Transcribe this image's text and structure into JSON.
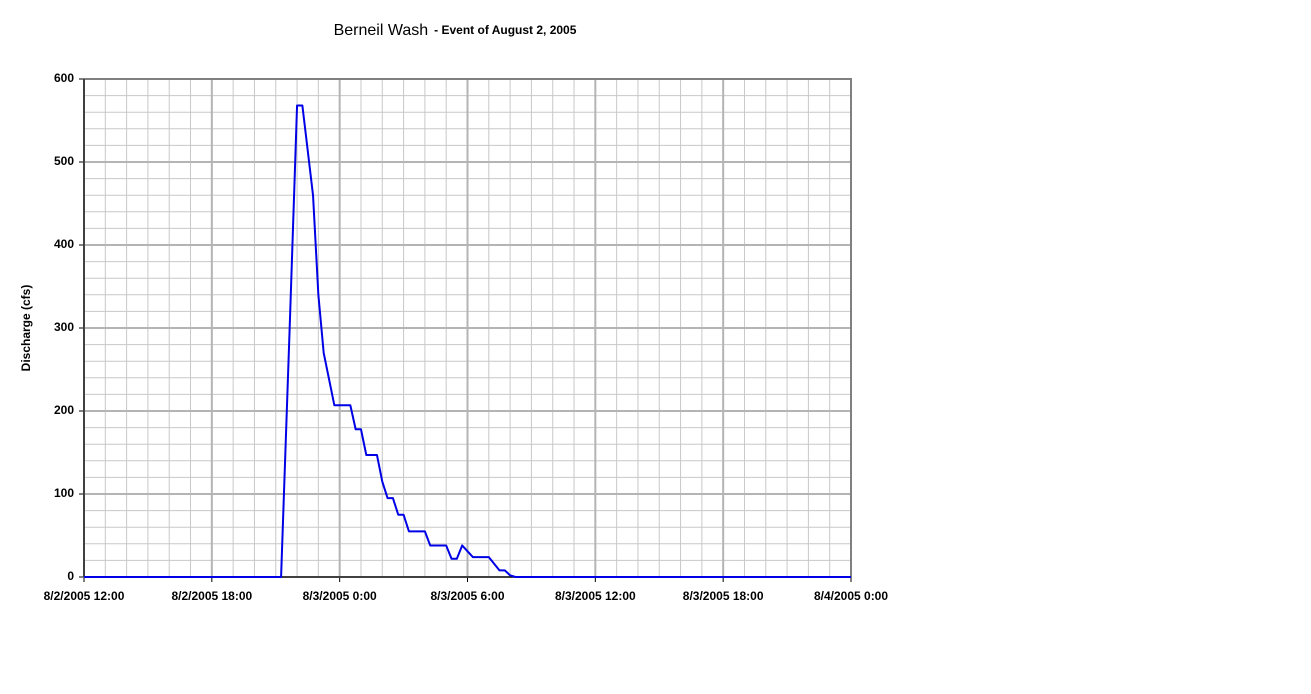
{
  "chart_data": {
    "type": "line",
    "title": "Berneil Wash",
    "subtitle": "- Event of August 2, 2005",
    "y_label": "Discharge (cfs)",
    "x": [
      "2005-08-02T12:00",
      "2005-08-02T21:15",
      "2005-08-02T21:40",
      "2005-08-02T22:00",
      "2005-08-02T22:15",
      "2005-08-02T22:45",
      "2005-08-02T23:00",
      "2005-08-02T23:15",
      "2005-08-02T23:45",
      "2005-08-03T00:30",
      "2005-08-03T00:45",
      "2005-08-03T01:00",
      "2005-08-03T01:15",
      "2005-08-03T01:45",
      "2005-08-03T02:00",
      "2005-08-03T02:15",
      "2005-08-03T02:30",
      "2005-08-03T02:45",
      "2005-08-03T03:00",
      "2005-08-03T03:15",
      "2005-08-03T04:00",
      "2005-08-03T04:15",
      "2005-08-03T05:00",
      "2005-08-03T05:15",
      "2005-08-03T05:30",
      "2005-08-03T05:45",
      "2005-08-03T06:15",
      "2005-08-03T07:00",
      "2005-08-03T07:30",
      "2005-08-03T07:45",
      "2005-08-03T08:00",
      "2005-08-03T08:15",
      "2005-08-04T00:00"
    ],
    "series": [
      {
        "name": "Discharge",
        "color": "#0000e6",
        "values": [
          0,
          0,
          310,
          568,
          568,
          460,
          340,
          270,
          207,
          207,
          178,
          178,
          147,
          147,
          115,
          95,
          95,
          75,
          75,
          55,
          55,
          38,
          38,
          22,
          22,
          38,
          24,
          24,
          8,
          8,
          2,
          0,
          0
        ]
      }
    ],
    "xlim": [
      "2005-08-02T12:00",
      "2005-08-04T00:00"
    ],
    "xticks": [
      {
        "value": "2005-08-02T12:00",
        "label": "8/2/2005 12:00"
      },
      {
        "value": "2005-08-02T18:00",
        "label": "8/2/2005 18:00"
      },
      {
        "value": "2005-08-03T00:00",
        "label": "8/3/2005 0:00"
      },
      {
        "value": "2005-08-03T06:00",
        "label": "8/3/2005 6:00"
      },
      {
        "value": "2005-08-03T12:00",
        "label": "8/3/2005 12:00"
      },
      {
        "value": "2005-08-03T18:00",
        "label": "8/3/2005 18:00"
      },
      {
        "value": "2005-08-04T00:00",
        "label": "8/4/2005 0:00"
      }
    ],
    "ylim": [
      0,
      600
    ],
    "yticks": [
      0,
      100,
      200,
      300,
      400,
      500,
      600
    ],
    "grid": true,
    "minor_grid": true
  }
}
